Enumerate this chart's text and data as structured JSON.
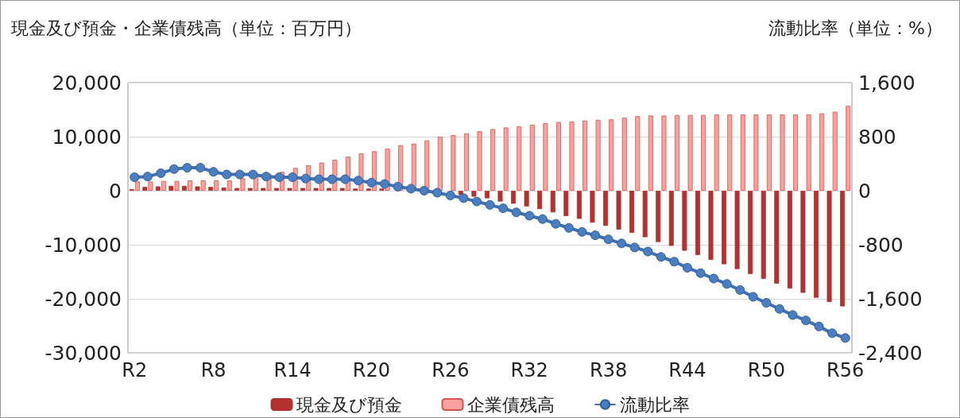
{
  "chart_data": {
    "type": "bar",
    "ylabel": "現金及び預金・企業債残高（単位：百万円）",
    "y2label": "流動比率（単位：%）",
    "categories": [
      "R2",
      null,
      null,
      null,
      null,
      null,
      "R8",
      null,
      null,
      null,
      null,
      null,
      "R14",
      null,
      null,
      null,
      null,
      null,
      "R20",
      null,
      null,
      null,
      null,
      null,
      "R26",
      null,
      null,
      null,
      null,
      null,
      "R32",
      null,
      null,
      null,
      null,
      null,
      "R38",
      null,
      null,
      null,
      null,
      null,
      "R44",
      null,
      null,
      null,
      null,
      null,
      "R50",
      null,
      null,
      null,
      null,
      null,
      "R56"
    ],
    "series": [
      {
        "name": "現金及び預金",
        "color": "#b3312f",
        "values": [
          300,
          700,
          800,
          900,
          900,
          800,
          700,
          600,
          500,
          500,
          500,
          500,
          500,
          500,
          500,
          500,
          500,
          400,
          400,
          400,
          null,
          null,
          null,
          null,
          null,
          -800,
          -1100,
          -1400,
          -2000,
          -2400,
          -2900,
          -3400,
          -4000,
          -4700,
          -5200,
          -5900,
          -6500,
          -7200,
          -7800,
          -8600,
          -9500,
          -10200,
          -11100,
          -11900,
          -12800,
          -13600,
          -14500,
          -15400,
          -16300,
          -17200,
          -18100,
          -18900,
          -19800,
          -20600,
          -21400
        ]
      },
      {
        "name": "企業債残高",
        "color": "#f7a29c",
        "values": [
          1700,
          1700,
          1800,
          1800,
          1900,
          1900,
          1900,
          1900,
          2300,
          2700,
          3100,
          3500,
          4200,
          4700,
          5200,
          5700,
          6300,
          6900,
          7300,
          7800,
          8400,
          8700,
          9300,
          10000,
          10300,
          10600,
          11000,
          11400,
          11700,
          11900,
          12200,
          12500,
          12700,
          12800,
          13000,
          13100,
          13200,
          13500,
          13800,
          13900,
          13900,
          14000,
          14000,
          14000,
          14100,
          14100,
          14100,
          14100,
          14100,
          14100,
          14100,
          14100,
          14300,
          14600,
          15700
        ]
      },
      {
        "name": "流動比率",
        "type": "line",
        "axis": "y2",
        "color": "#3f6fb5",
        "values": [
          200,
          210,
          260,
          320,
          340,
          340,
          280,
          240,
          240,
          240,
          210,
          200,
          200,
          180,
          170,
          170,
          170,
          150,
          120,
          100,
          60,
          30,
          0,
          -30,
          -70,
          -110,
          -160,
          -210,
          -260,
          -320,
          -370,
          -420,
          -490,
          -550,
          -610,
          -660,
          -720,
          -780,
          -840,
          -900,
          -980,
          -1050,
          -1140,
          -1220,
          -1300,
          -1380,
          -1470,
          -1570,
          -1660,
          -1750,
          -1840,
          -1920,
          -2010,
          -2110,
          -2180
        ]
      }
    ],
    "ylim": [
      -30000,
      20000
    ],
    "yticks": [
      {
        "value": -30000,
        "label": "-30,000"
      },
      {
        "value": -20000,
        "label": "-20,000"
      },
      {
        "value": -10000,
        "label": "-10,000"
      },
      0,
      {
        "value": 10000,
        "label": "10,000"
      },
      {
        "value": 20000,
        "label": "20,000"
      }
    ],
    "y2lim": [
      -2400,
      1600
    ],
    "y2ticks": [
      {
        "value": -2400,
        "label": "-2,400"
      },
      {
        "value": -1600,
        "label": "-1,600"
      },
      -800,
      0,
      800,
      {
        "value": 1600,
        "label": "1,600"
      }
    ],
    "grid": "y",
    "legend": "bottom",
    "marker": "circle"
  }
}
